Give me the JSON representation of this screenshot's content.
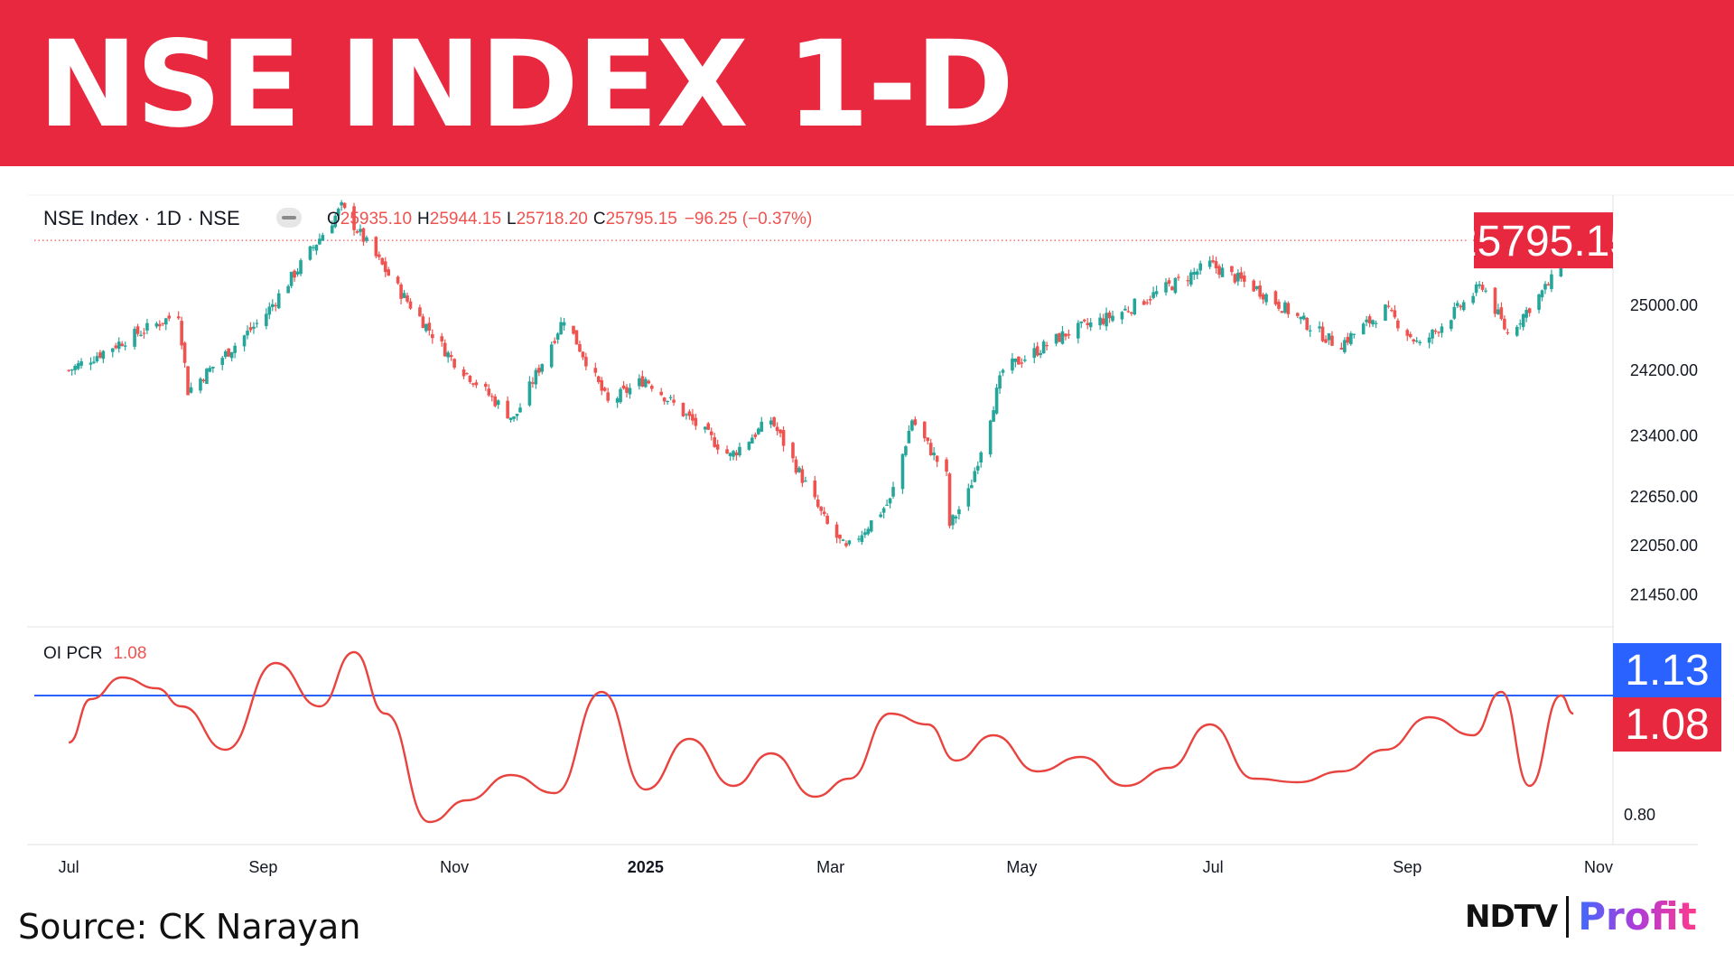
{
  "banner": {
    "title": "NSE INDEX 1-D"
  },
  "legend": {
    "symbol": "NSE Index · 1D · NSE",
    "open_label": "O",
    "open": "25935.10",
    "high_label": "H",
    "high": "25944.15",
    "low_label": "L",
    "low": "25718.20",
    "close_label": "C",
    "close": "25795.15",
    "change": "−96.25 (−0.37%)"
  },
  "indicator": {
    "name": "OI PCR",
    "value": "1.08"
  },
  "footer": {
    "source": "Source: CK Narayan",
    "logo_left": "NDTV",
    "logo_right": "Profit"
  },
  "colors": {
    "banner": "#e8283e",
    "up": "#26a69a",
    "down": "#ef5350",
    "pcr_line": "#e8433f",
    "ref_line": "#2962ff"
  },
  "chart_data": [
    {
      "type": "candlestick",
      "title": "NSE Index · 1D · NSE",
      "last_price": "25795.15",
      "y_ticks": [
        "25000.00",
        "24200.00",
        "23400.00",
        "22650.00",
        "22050.00",
        "21450.00"
      ],
      "x_ticks": [
        "Jul",
        "Sep",
        "Nov",
        "2025",
        "Mar",
        "May",
        "Jul",
        "Sep",
        "Nov"
      ],
      "ylim": [
        21100,
        26350
      ],
      "close_path": [
        [
          "2024-07-01",
          24200
        ],
        [
          "2024-07-20",
          24600
        ],
        [
          "2024-08-05",
          24900
        ],
        [
          "2024-08-08",
          23950
        ],
        [
          "2024-09-01",
          24850
        ],
        [
          "2024-09-26",
          26200
        ],
        [
          "2024-10-15",
          25150
        ],
        [
          "2024-10-31",
          24350
        ],
        [
          "2024-11-20",
          23600
        ],
        [
          "2024-12-06",
          24850
        ],
        [
          "2024-12-20",
          23800
        ],
        [
          "2025-01-01",
          24100
        ],
        [
          "2025-01-28",
          23150
        ],
        [
          "2025-02-10",
          23600
        ],
        [
          "2025-02-28",
          22300
        ],
        [
          "2025-03-06",
          22000
        ],
        [
          "2025-03-20",
          22600
        ],
        [
          "2025-03-27",
          23600
        ],
        [
          "2025-04-07",
          22900
        ],
        [
          "2025-04-08",
          22300
        ],
        [
          "2025-04-14",
          22700
        ],
        [
          "2025-04-25",
          24200
        ],
        [
          "2025-05-15",
          24650
        ],
        [
          "2025-06-01",
          24900
        ],
        [
          "2025-06-30",
          25500
        ],
        [
          "2025-07-15",
          25200
        ],
        [
          "2025-08-10",
          24500
        ],
        [
          "2025-08-25",
          24950
        ],
        [
          "2025-09-05",
          24500
        ],
        [
          "2025-09-25",
          25250
        ],
        [
          "2025-10-03",
          24650
        ],
        [
          "2025-10-17",
          25300
        ],
        [
          "2025-10-22",
          25795.15
        ]
      ],
      "last_candle": {
        "open": 25935.1,
        "high": 25944.15,
        "low": 25718.2,
        "close": 25795.15
      }
    },
    {
      "type": "line",
      "title": "OI PCR",
      "value": "1.08",
      "reference_value": "1.13",
      "y_ticks": [
        "0.80"
      ],
      "ylim": [
        0.73,
        1.28
      ],
      "x": [
        "2024-07-01",
        "2024-07-08",
        "2024-07-18",
        "2024-07-29",
        "2024-08-06",
        "2024-08-20",
        "2024-09-05",
        "2024-09-19",
        "2024-09-30",
        "2024-10-10",
        "2024-10-24",
        "2024-11-05",
        "2024-11-19",
        "2024-12-03",
        "2024-12-18",
        "2025-01-01",
        "2025-01-15",
        "2025-01-29",
        "2025-02-10",
        "2025-02-24",
        "2025-03-07",
        "2025-03-20",
        "2025-04-01",
        "2025-04-10",
        "2025-04-22",
        "2025-05-06",
        "2025-05-20",
        "2025-06-03",
        "2025-06-17",
        "2025-06-30",
        "2025-07-14",
        "2025-07-28",
        "2025-08-11",
        "2025-08-25",
        "2025-09-08",
        "2025-09-22",
        "2025-10-01",
        "2025-10-10",
        "2025-10-20",
        "2025-10-24"
      ],
      "y": [
        1.0,
        1.12,
        1.18,
        1.15,
        1.1,
        0.98,
        1.22,
        1.1,
        1.25,
        1.08,
        0.78,
        0.84,
        0.91,
        0.86,
        1.14,
        0.87,
        1.01,
        0.88,
        0.97,
        0.85,
        0.9,
        1.08,
        1.05,
        0.95,
        1.02,
        0.92,
        0.96,
        0.88,
        0.93,
        1.05,
        0.9,
        0.89,
        0.92,
        0.98,
        1.07,
        1.02,
        1.14,
        0.88,
        1.13,
        1.08
      ]
    }
  ]
}
